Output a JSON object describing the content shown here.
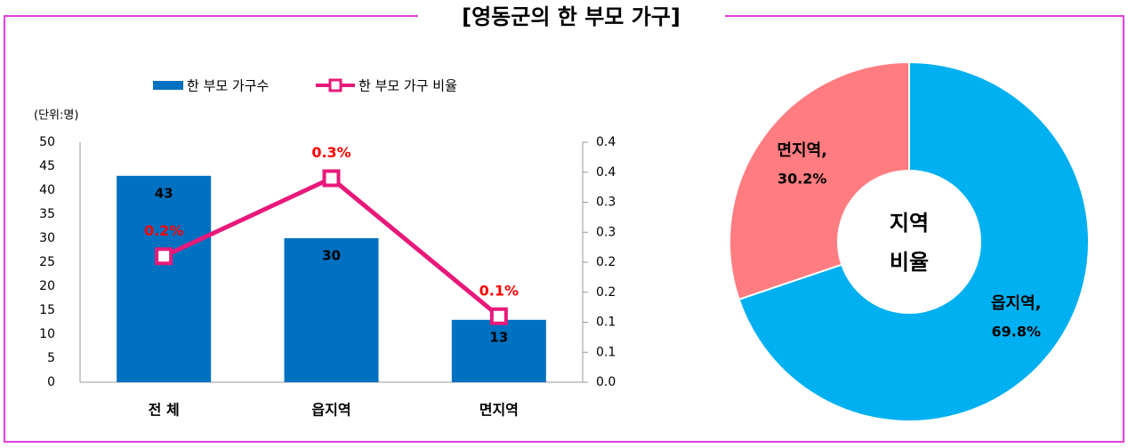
{
  "title": "[영동군의 한 부모 가구]",
  "chart_data": [
    {
      "type": "bar",
      "unit_label": "(단위:명)",
      "categories": [
        "전 체",
        "읍지역",
        "면지역"
      ],
      "series": [
        {
          "name": "한 부모 가구수",
          "type": "bar",
          "color": "#0070c0",
          "values": [
            43,
            30,
            13
          ]
        },
        {
          "name": "한 부모 가구 비율",
          "type": "line",
          "axis": "y2",
          "color": "#e8197a",
          "values": [
            0.21,
            0.34,
            0.11
          ],
          "value_labels": [
            "0.2%",
            "0.3%",
            "0.1%"
          ]
        }
      ],
      "ylim": [
        0,
        50
      ],
      "yticks": [
        0,
        5,
        10,
        15,
        20,
        25,
        30,
        35,
        40,
        45,
        50
      ],
      "y2lim": [
        0,
        0.4
      ],
      "y2ticks": [
        {
          "value": 0,
          "label": "0.0"
        },
        {
          "value": 0.05,
          "label": "0.1"
        },
        0.1,
        {
          "value": 0.15,
          "label": "0.2"
        },
        0.2,
        {
          "value": 0.25,
          "label": "0.3"
        },
        0.3,
        {
          "value": 0.35,
          "label": "0.4"
        },
        0.4
      ],
      "legend": "top"
    },
    {
      "type": "donut",
      "categories": [
        "읍지역,",
        "면지역,"
      ],
      "values": [
        69.8,
        30.2
      ],
      "value_labels": [
        "69.8%",
        "30.2%"
      ],
      "colors": [
        "#00b0f0",
        "#ff7c80"
      ],
      "center_label": [
        "지역",
        "비율"
      ]
    }
  ]
}
